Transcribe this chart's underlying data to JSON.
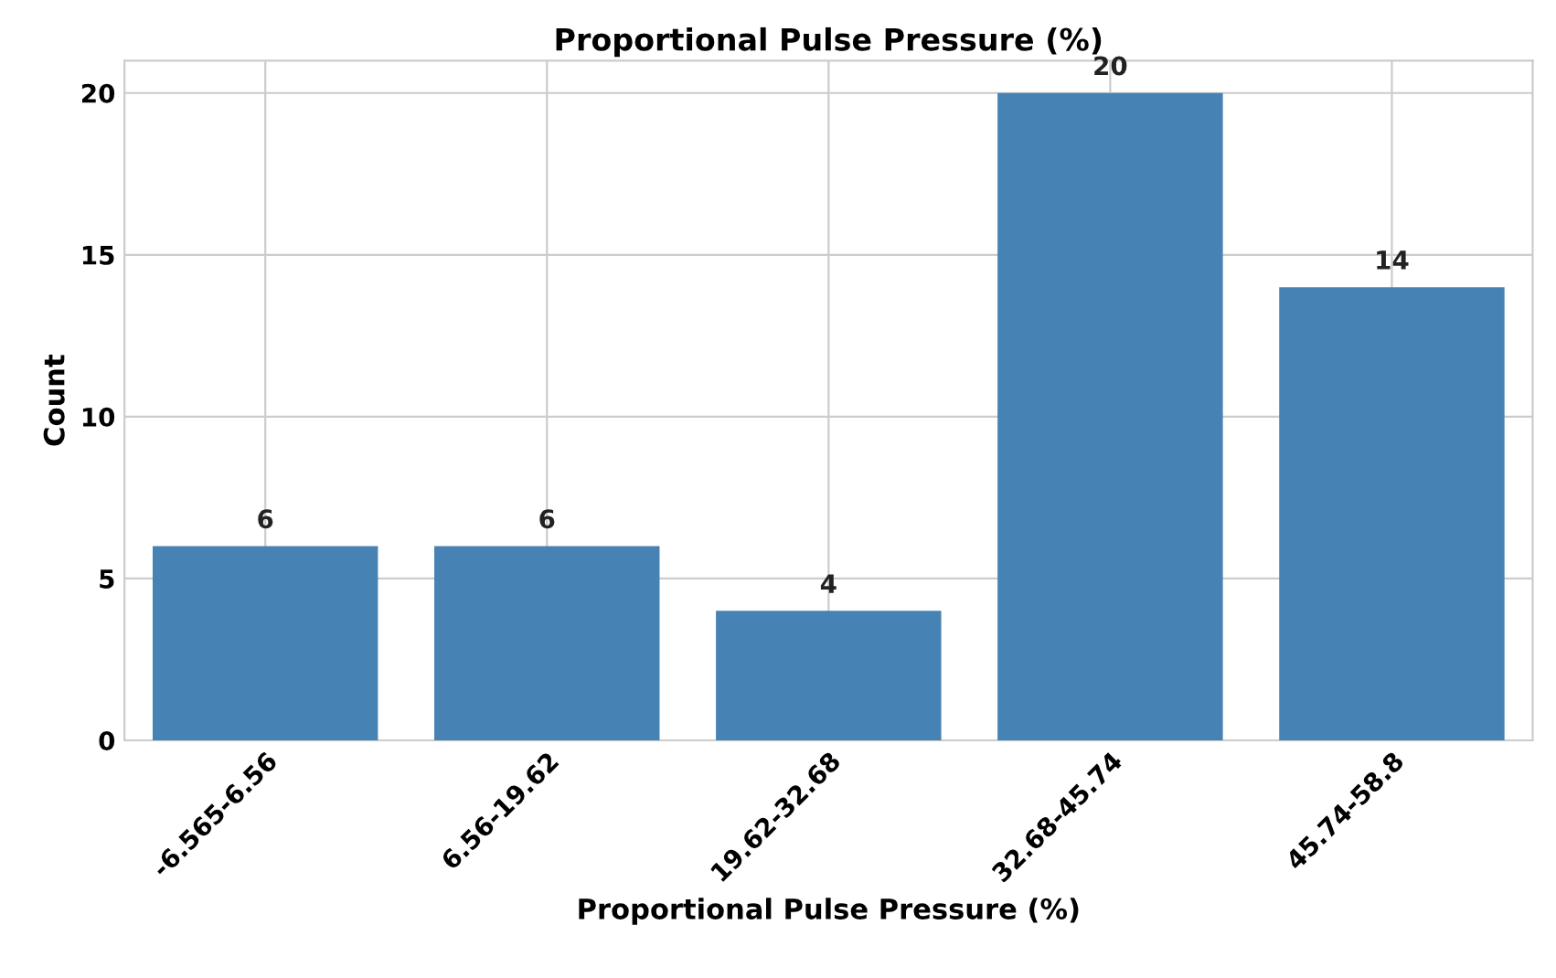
{
  "chart_data": {
    "type": "bar",
    "title": "Proportional Pulse Pressure (%)",
    "xlabel": "Proportional Pulse Pressure (%)",
    "ylabel": "Count",
    "categories": [
      "-6.565-6.56",
      "6.56-19.62",
      "19.62-32.68",
      "32.68-45.74",
      "45.74-58.8"
    ],
    "values": [
      6,
      6,
      4,
      20,
      14
    ],
    "color": "#4682b4",
    "ylim": [
      0,
      21
    ],
    "yticks": [
      0,
      5,
      10,
      15,
      20
    ],
    "grid": true,
    "data_labels": true
  }
}
